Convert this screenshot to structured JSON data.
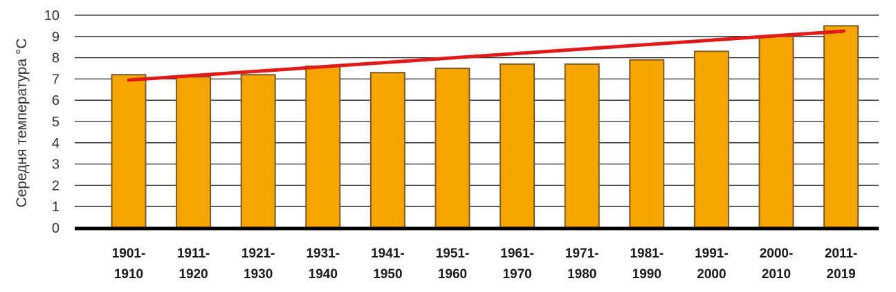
{
  "chart_data": {
    "type": "bar",
    "title": "",
    "xlabel": "",
    "ylabel": "Середня температура °C",
    "ylim": [
      0,
      10
    ],
    "yticks": [
      0,
      1,
      2,
      3,
      4,
      5,
      6,
      7,
      8,
      9,
      10
    ],
    "grid": true,
    "categories": [
      [
        "1901-",
        "1910"
      ],
      [
        "1911-",
        "1920"
      ],
      [
        "1921-",
        "1930"
      ],
      [
        "1931-",
        "1940"
      ],
      [
        "1941-",
        "1950"
      ],
      [
        "1951-",
        "1960"
      ],
      [
        "1961-",
        "1970"
      ],
      [
        "1971-",
        "1980"
      ],
      [
        "1981-",
        "1990"
      ],
      [
        "1991-",
        "2000"
      ],
      [
        "2000-",
        "2010"
      ],
      [
        "2011-",
        "2019"
      ]
    ],
    "values": [
      7.2,
      7.1,
      7.2,
      7.6,
      7.3,
      7.5,
      7.7,
      7.7,
      7.9,
      8.3,
      9.0,
      9.5
    ],
    "trend": {
      "start": 6.95,
      "end": 9.25
    },
    "colors": {
      "bar": "#f5a500",
      "bar_border": "#7a5a2a",
      "trend": "#e01b1b",
      "axis": "#000000",
      "grid": "#222222"
    }
  }
}
